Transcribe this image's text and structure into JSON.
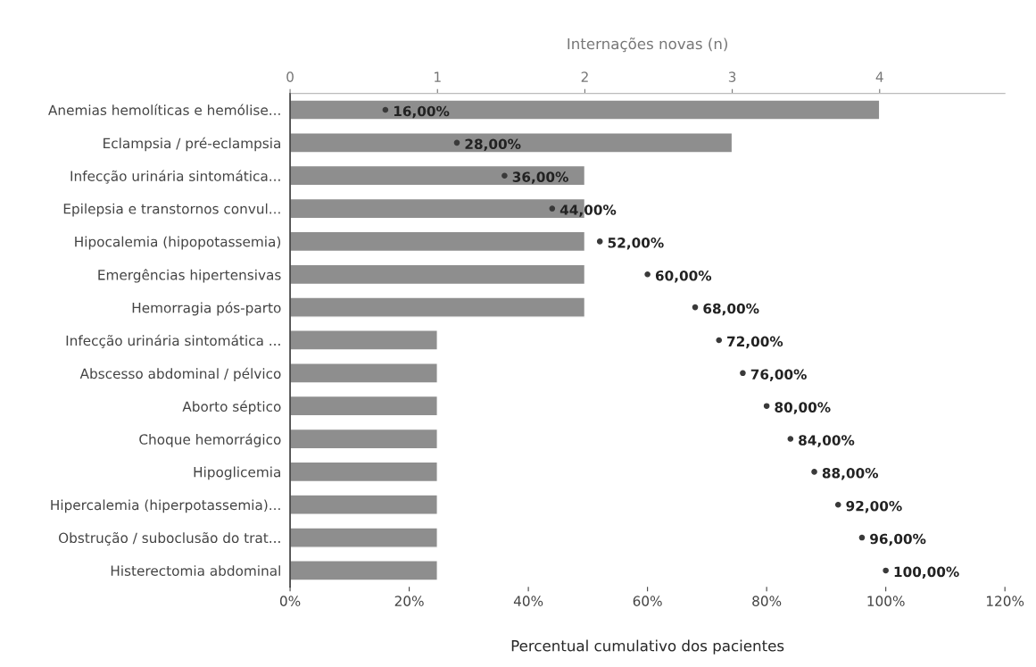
{
  "chart_data": {
    "type": "bar",
    "orientation": "horizontal",
    "categories": [
      "Anemias hemolíticas e hemólise...",
      "Eclampsia / pré-eclampsia",
      "Infecção urinária sintomática...",
      "Epilepsia e transtornos convul...",
      "Hipocalemia (hipopotassemia)",
      "Emergências hipertensivas",
      "Hemorragia pós-parto",
      "Infecção urinária sintomática ...",
      "Abscesso abdominal / pélvico",
      "Aborto séptico",
      "Choque hemorrágico",
      "Hipoglicemia",
      "Hipercalemia (hiperpotassemia)...",
      "Obstrução / suboclusão do trat...",
      "Histerectomia abdominal"
    ],
    "series": [
      {
        "axis": "x2",
        "color": "#8e8e8e",
        "values": [
          4,
          3,
          2,
          2,
          2,
          2,
          2,
          1,
          1,
          1,
          1,
          1,
          1,
          1,
          1
        ]
      },
      {
        "type": "scatter",
        "color": "#3a3a3a",
        "marker": "circle",
        "values": [
          16,
          28,
          36,
          44,
          52,
          60,
          68,
          72,
          76,
          80,
          84,
          88,
          92,
          96,
          100
        ],
        "value_labels": [
          "16,00%",
          "28,00%",
          "36,00%",
          "44,00%",
          "52,00%",
          "60,00%",
          "68,00%",
          "72,00%",
          "76,00%",
          "80,00%",
          "84,00%",
          "88,00%",
          "92,00%",
          "96,00%",
          "100,00%"
        ]
      }
    ],
    "xlabel": "Percentual cumulativo dos pacientes",
    "x2label": "Internações novas (n)",
    "xlim": [
      0,
      120
    ],
    "xticks": [
      {
        "value": 0,
        "label": "0%"
      },
      {
        "value": 20,
        "label": "20%"
      },
      {
        "value": 40,
        "label": "40%"
      },
      {
        "value": 60,
        "label": "60%"
      },
      {
        "value": 80,
        "label": "80%"
      },
      {
        "value": 100,
        "label": "100%"
      },
      {
        "value": 120,
        "label": "120%"
      }
    ],
    "x2lim": [
      0,
      4.85
    ],
    "x2ticks": [
      0,
      1,
      2,
      3,
      4
    ],
    "grid": false,
    "legend": false
  }
}
